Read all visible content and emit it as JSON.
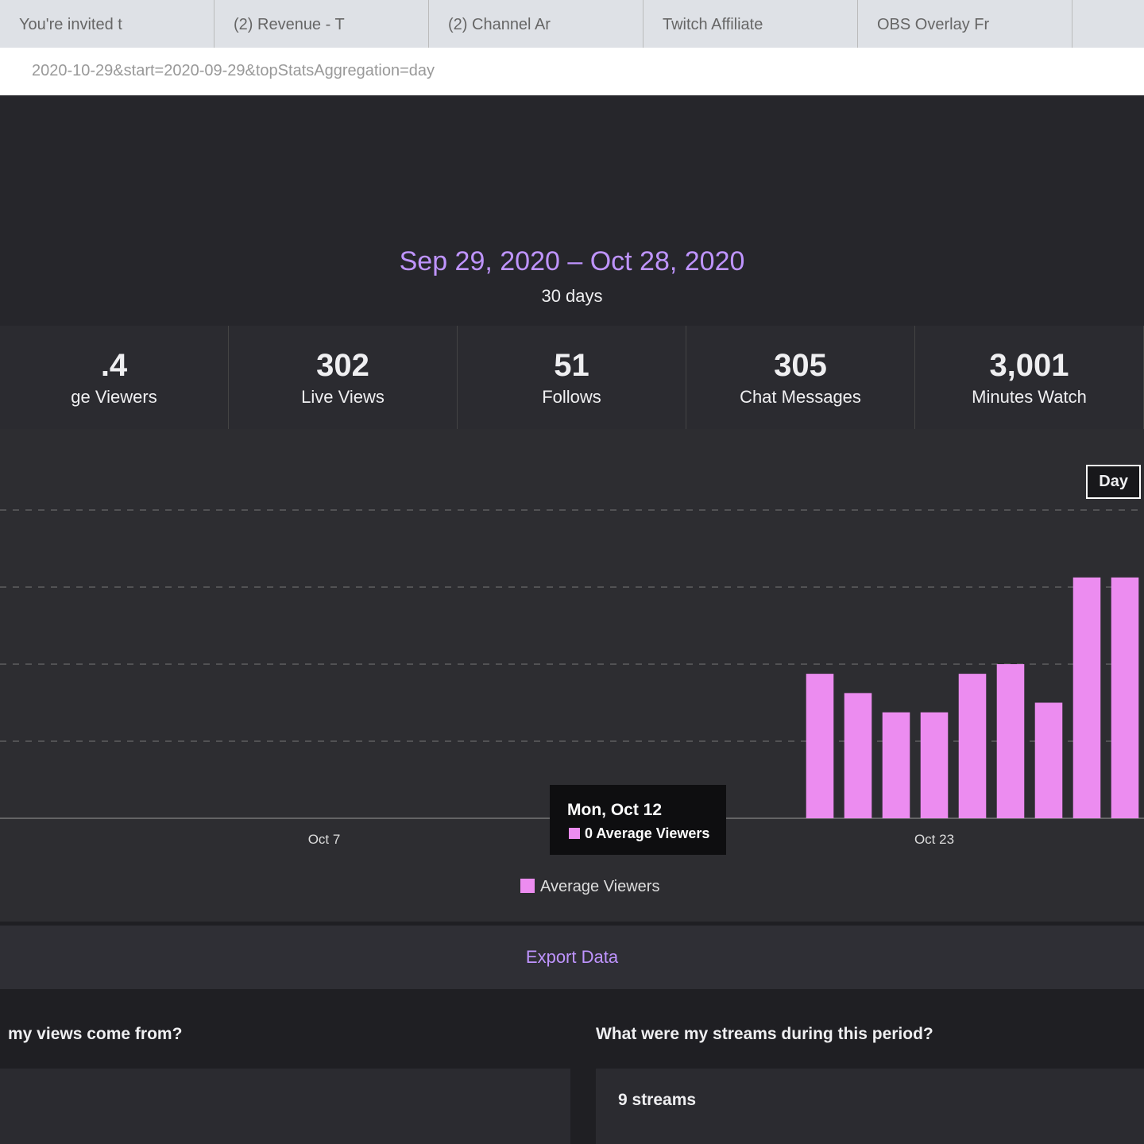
{
  "browser": {
    "tabs": [
      "You're invited t",
      "(2) Revenue - T",
      "(2) Channel Ar",
      "Twitch Affiliate",
      "OBS Overlay Fr"
    ],
    "url": "2020-10-29&start=2020-09-29&topStatsAggregation=day"
  },
  "header": {
    "date_range": "Sep 29, 2020 – Oct 28, 2020",
    "duration": "30 days"
  },
  "stats": [
    {
      "value": ".4",
      "label": "ge Viewers"
    },
    {
      "value": "302",
      "label": "Live Views"
    },
    {
      "value": "51",
      "label": "Follows"
    },
    {
      "value": "305",
      "label": "Chat Messages"
    },
    {
      "value": "3,001",
      "label": "Minutes Watch"
    }
  ],
  "granularity_button": "Day",
  "chart_data": {
    "type": "bar",
    "categories": [
      null,
      null,
      null,
      null,
      null,
      null,
      null,
      null,
      "Oct 7",
      null,
      null,
      null,
      null,
      null,
      null,
      null,
      null,
      null,
      null,
      null,
      null,
      null,
      null,
      null,
      "Oct 23",
      null,
      null,
      null,
      null,
      null
    ],
    "series": [
      {
        "name": "Average Viewers",
        "color": "#ec8cf0",
        "values": [
          0,
          0,
          0,
          0,
          0,
          0,
          0,
          0,
          0,
          0,
          0,
          0,
          0,
          0,
          0,
          0,
          0,
          0,
          0,
          0,
          0,
          1.5,
          1.3,
          1.1,
          1.1,
          1.5,
          1.6,
          1.2,
          2.5,
          2.5
        ]
      }
    ],
    "ylim": [
      0,
      4
    ]
  },
  "tooltip": {
    "title": "Mon, Oct 12",
    "text": "0 Average Viewers"
  },
  "export_button": "Export Data",
  "sections": [
    {
      "title": "my views come from?"
    },
    {
      "title": "What were my streams during this period?",
      "summary": "9 streams"
    }
  ]
}
